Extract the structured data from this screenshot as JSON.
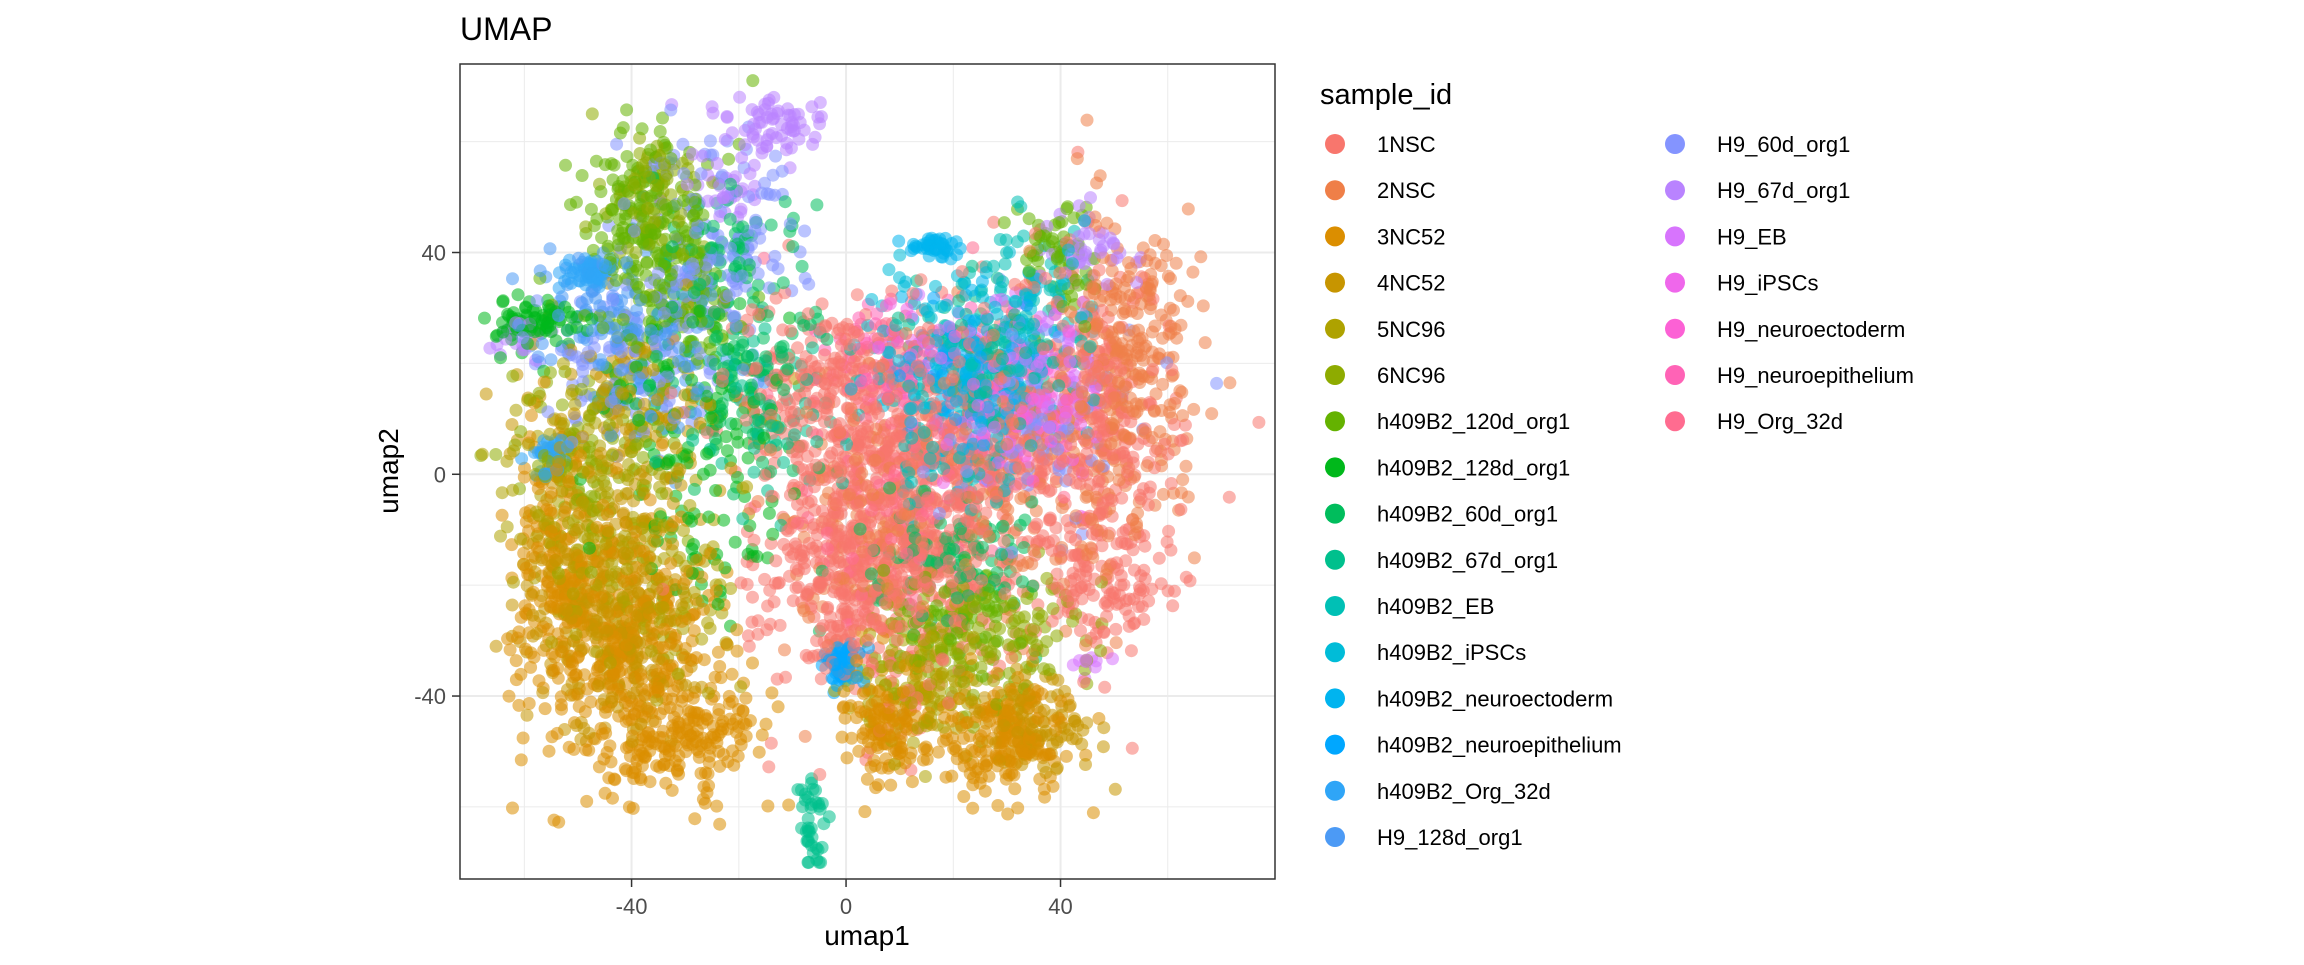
{
  "chart_data": {
    "type": "scatter",
    "title": "UMAP",
    "xlabel": "umap1",
    "ylabel": "umap2",
    "xlim": [
      -72,
      80
    ],
    "ylim": [
      -73,
      74
    ],
    "x_ticks": [
      -40,
      0,
      40
    ],
    "y_ticks": [
      -40,
      0,
      40
    ],
    "grid": true,
    "legend": {
      "title": "sample_id",
      "placement": "right",
      "columns": 2
    },
    "series": [
      {
        "name": "1NSC",
        "color": "#F8766D",
        "clusters": [
          {
            "cx": 5,
            "cy": -15,
            "sx": 10,
            "sy": 14,
            "n": 600
          },
          {
            "cx": 25,
            "cy": 5,
            "sx": 16,
            "sy": 16,
            "n": 500
          },
          {
            "cx": 48,
            "cy": 5,
            "sx": 6,
            "sy": 18,
            "n": 200
          },
          {
            "cx": -5,
            "cy": 15,
            "sx": 10,
            "sy": 8,
            "n": 200
          },
          {
            "cx": 50,
            "cy": -20,
            "sx": 8,
            "sy": 5,
            "n": 80
          }
        ]
      },
      {
        "name": "2NSC",
        "color": "#EF7F48",
        "clusters": [
          {
            "cx": 52,
            "cy": 20,
            "sx": 6,
            "sy": 14,
            "n": 300
          },
          {
            "cx": 30,
            "cy": 0,
            "sx": 12,
            "sy": 14,
            "n": 200
          },
          {
            "cx": 5,
            "cy": -10,
            "sx": 8,
            "sy": 12,
            "n": 150
          }
        ]
      },
      {
        "name": "3NC52",
        "color": "#DB8E00",
        "clusters": [
          {
            "cx": -40,
            "cy": -32,
            "sx": 9,
            "sy": 12,
            "n": 400
          },
          {
            "cx": -55,
            "cy": -15,
            "sx": 4,
            "sy": 12,
            "n": 150
          },
          {
            "cx": -30,
            "cy": -48,
            "sx": 8,
            "sy": 5,
            "n": 150
          },
          {
            "cx": 8,
            "cy": -45,
            "sx": 5,
            "sy": 5,
            "n": 150
          },
          {
            "cx": 30,
            "cy": -47,
            "sx": 6,
            "sy": 5,
            "n": 200
          }
        ]
      },
      {
        "name": "4NC52",
        "color": "#C79500",
        "clusters": [
          {
            "cx": -45,
            "cy": -25,
            "sx": 8,
            "sy": 10,
            "n": 300
          },
          {
            "cx": -40,
            "cy": 10,
            "sx": 10,
            "sy": 10,
            "n": 150
          },
          {
            "cx": 35,
            "cy": -45,
            "sx": 5,
            "sy": 5,
            "n": 100
          }
        ]
      },
      {
        "name": "5NC96",
        "color": "#AEA200",
        "clusters": [
          {
            "cx": -50,
            "cy": -5,
            "sx": 6,
            "sy": 10,
            "n": 150
          },
          {
            "cx": -35,
            "cy": -20,
            "sx": 8,
            "sy": 10,
            "n": 120
          },
          {
            "cx": 15,
            "cy": -38,
            "sx": 8,
            "sy": 6,
            "n": 120
          }
        ]
      },
      {
        "name": "6NC96",
        "color": "#8EAB00",
        "clusters": [
          {
            "cx": -45,
            "cy": 5,
            "sx": 8,
            "sy": 10,
            "n": 120
          },
          {
            "cx": 25,
            "cy": -30,
            "sx": 10,
            "sy": 6,
            "n": 150
          },
          {
            "cx": -36,
            "cy": 50,
            "sx": 5,
            "sy": 5,
            "n": 80
          }
        ]
      },
      {
        "name": "h409B2_120d_org1",
        "color": "#64B200",
        "clusters": [
          {
            "cx": -37,
            "cy": 45,
            "sx": 6,
            "sy": 9,
            "n": 200
          },
          {
            "cx": -30,
            "cy": 30,
            "sx": 6,
            "sy": 6,
            "n": 80
          },
          {
            "cx": 40,
            "cy": 40,
            "sx": 4,
            "sy": 6,
            "n": 60
          },
          {
            "cx": 22,
            "cy": -25,
            "sx": 6,
            "sy": 5,
            "n": 80
          }
        ]
      },
      {
        "name": "h409B2_128d_org1",
        "color": "#00B81B",
        "clusters": [
          {
            "cx": -58,
            "cy": 27,
            "sx": 4,
            "sy": 2,
            "n": 80
          },
          {
            "cx": -30,
            "cy": 15,
            "sx": 8,
            "sy": 10,
            "n": 100
          },
          {
            "cx": -25,
            "cy": -10,
            "sx": 8,
            "sy": 10,
            "n": 60
          }
        ]
      },
      {
        "name": "h409B2_60d_org1",
        "color": "#00BD5C",
        "clusters": [
          {
            "cx": -20,
            "cy": 20,
            "sx": 8,
            "sy": 10,
            "n": 120
          },
          {
            "cx": 20,
            "cy": -15,
            "sx": 8,
            "sy": 6,
            "n": 120
          },
          {
            "cx": -22,
            "cy": 40,
            "sx": 6,
            "sy": 6,
            "n": 60
          }
        ]
      },
      {
        "name": "h409B2_67d_org1",
        "color": "#00C08D",
        "clusters": [
          {
            "cx": -6,
            "cy": -62,
            "sx": 1.5,
            "sy": 5,
            "n": 40
          },
          {
            "cx": 25,
            "cy": 20,
            "sx": 8,
            "sy": 8,
            "n": 80
          },
          {
            "cx": -15,
            "cy": 10,
            "sx": 8,
            "sy": 8,
            "n": 60
          }
        ]
      },
      {
        "name": "h409B2_EB",
        "color": "#00C0B5",
        "clusters": [
          {
            "cx": 35,
            "cy": 30,
            "sx": 6,
            "sy": 8,
            "n": 80
          },
          {
            "cx": 20,
            "cy": 5,
            "sx": 8,
            "sy": 8,
            "n": 80
          }
        ]
      },
      {
        "name": "h409B2_iPSCs",
        "color": "#00BCD8",
        "clusters": [
          {
            "cx": 15,
            "cy": 20,
            "sx": 6,
            "sy": 8,
            "n": 80
          },
          {
            "cx": 30,
            "cy": 25,
            "sx": 6,
            "sy": 8,
            "n": 80
          }
        ]
      },
      {
        "name": "h409B2_neuroectoderm",
        "color": "#00B4EF",
        "clusters": [
          {
            "cx": 25,
            "cy": 15,
            "sx": 6,
            "sy": 8,
            "n": 100
          },
          {
            "cx": 17,
            "cy": 41,
            "sx": 3,
            "sy": 1,
            "n": 40
          }
        ]
      },
      {
        "name": "h409B2_neuroepithelium",
        "color": "#00A7FF",
        "clusters": [
          {
            "cx": -1,
            "cy": -34,
            "sx": 2,
            "sy": 2,
            "n": 60
          },
          {
            "cx": 20,
            "cy": 20,
            "sx": 6,
            "sy": 6,
            "n": 40
          }
        ]
      },
      {
        "name": "h409B2_Org_32d",
        "color": "#2FA5F7",
        "clusters": [
          {
            "cx": -48,
            "cy": 37,
            "sx": 3,
            "sy": 1.5,
            "n": 60
          },
          {
            "cx": -56,
            "cy": 3,
            "sx": 2,
            "sy": 2,
            "n": 40
          }
        ]
      },
      {
        "name": "H9_128d_org1",
        "color": "#4C9AF5",
        "clusters": [
          {
            "cx": -45,
            "cy": 30,
            "sx": 6,
            "sy": 6,
            "n": 80
          },
          {
            "cx": -35,
            "cy": 20,
            "sx": 8,
            "sy": 8,
            "n": 80
          }
        ]
      },
      {
        "name": "H9_60d_org1",
        "color": "#8494FF",
        "clusters": [
          {
            "cx": -25,
            "cy": 40,
            "sx": 8,
            "sy": 10,
            "n": 150
          },
          {
            "cx": -40,
            "cy": 20,
            "sx": 8,
            "sy": 8,
            "n": 100
          },
          {
            "cx": 35,
            "cy": 10,
            "sx": 10,
            "sy": 10,
            "n": 100
          }
        ]
      },
      {
        "name": "H9_67d_org1",
        "color": "#B983FF",
        "clusters": [
          {
            "cx": -13,
            "cy": 63,
            "sx": 5,
            "sy": 2.5,
            "n": 60
          },
          {
            "cx": -22,
            "cy": 55,
            "sx": 4,
            "sy": 5,
            "n": 40
          },
          {
            "cx": 45,
            "cy": 42,
            "sx": 4,
            "sy": 4,
            "n": 40
          },
          {
            "cx": -60,
            "cy": 24,
            "sx": 3,
            "sy": 2,
            "n": 20
          }
        ]
      },
      {
        "name": "H9_EB",
        "color": "#D774FD",
        "clusters": [
          {
            "cx": 35,
            "cy": 20,
            "sx": 6,
            "sy": 8,
            "n": 100
          },
          {
            "cx": 44,
            "cy": -34,
            "sx": 2,
            "sy": 1,
            "n": 10
          }
        ]
      },
      {
        "name": "H9_iPSCs",
        "color": "#EF67EB",
        "clusters": [
          {
            "cx": 30,
            "cy": 10,
            "sx": 8,
            "sy": 6,
            "n": 80
          },
          {
            "cx": 15,
            "cy": 22,
            "sx": 6,
            "sy": 4,
            "n": 30
          }
        ]
      },
      {
        "name": "H9_neuroectoderm",
        "color": "#FC61D5",
        "clusters": [
          {
            "cx": 35,
            "cy": 15,
            "sx": 6,
            "sy": 6,
            "n": 60
          }
        ]
      },
      {
        "name": "H9_neuroepithelium",
        "color": "#FF63B6",
        "clusters": [
          {
            "cx": 5,
            "cy": 20,
            "sx": 6,
            "sy": 6,
            "n": 40
          }
        ]
      },
      {
        "name": "H9_Org_32d",
        "color": "#FF6C90",
        "clusters": [
          {
            "cx": 10,
            "cy": 10,
            "sx": 12,
            "sy": 12,
            "n": 80
          },
          {
            "cx": 10,
            "cy": -10,
            "sx": 10,
            "sy": 12,
            "n": 80
          }
        ]
      }
    ]
  }
}
